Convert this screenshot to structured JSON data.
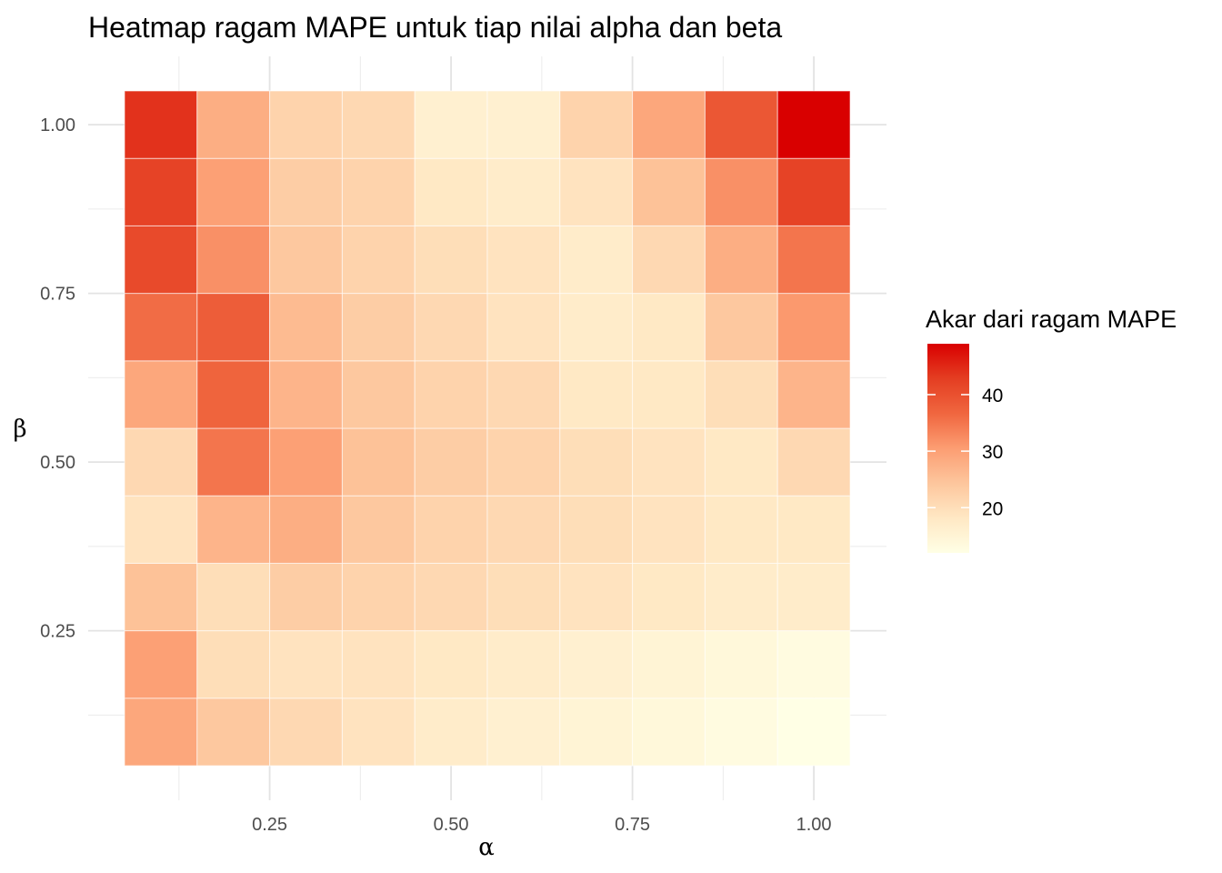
{
  "chart_data": {
    "type": "heatmap",
    "title": "Heatmap ragam MAPE untuk tiap nilai alpha dan beta",
    "xlabel": "α",
    "ylabel": "β",
    "x": [
      0.1,
      0.2,
      0.3,
      0.4,
      0.5,
      0.6,
      0.7,
      0.8,
      0.9,
      1.0
    ],
    "y": [
      0.1,
      0.2,
      0.3,
      0.4,
      0.5,
      0.6,
      0.7,
      0.8,
      0.9,
      1.0
    ],
    "xlim": [
      0.05,
      1.05
    ],
    "ylim": [
      0.05,
      1.05
    ],
    "x_ticks": [
      "0.25",
      "0.50",
      "0.75",
      "1.00"
    ],
    "y_ticks": [
      "0.25",
      "0.50",
      "0.75",
      "1.00"
    ],
    "grid": true,
    "values": [
      [
        29,
        24,
        21,
        19,
        17,
        16,
        15,
        14,
        13,
        12
      ],
      [
        30,
        20,
        19,
        19,
        18,
        17,
        16,
        15,
        14,
        13
      ],
      [
        25,
        20,
        23,
        22,
        21,
        20,
        19,
        18,
        17,
        17
      ],
      [
        19,
        27,
        28,
        24,
        22,
        21,
        20,
        19,
        18,
        18
      ],
      [
        21,
        35,
        30,
        25,
        23,
        22,
        20,
        19,
        18,
        21
      ],
      [
        29,
        37,
        27,
        24,
        22,
        21,
        18,
        18,
        20,
        27
      ],
      [
        36,
        38,
        26,
        23,
        21,
        19,
        17,
        18,
        24,
        31
      ],
      [
        41,
        32,
        24,
        22,
        20,
        19,
        17,
        21,
        28,
        35
      ],
      [
        42,
        30,
        23,
        22,
        18,
        17,
        19,
        25,
        32,
        42
      ],
      [
        44,
        28,
        22,
        21,
        16,
        16,
        22,
        29,
        39,
        49
      ]
    ],
    "legend": {
      "title": "Akar dari ragam MAPE",
      "position": "right",
      "min": 12,
      "max": 49,
      "ticks": [
        20,
        30,
        40
      ],
      "colors": [
        "#FFFFE5",
        "#FFE8C4",
        "#FDC69D",
        "#FC9D72",
        "#F0663F",
        "#E43E22",
        "#D90000"
      ]
    }
  }
}
